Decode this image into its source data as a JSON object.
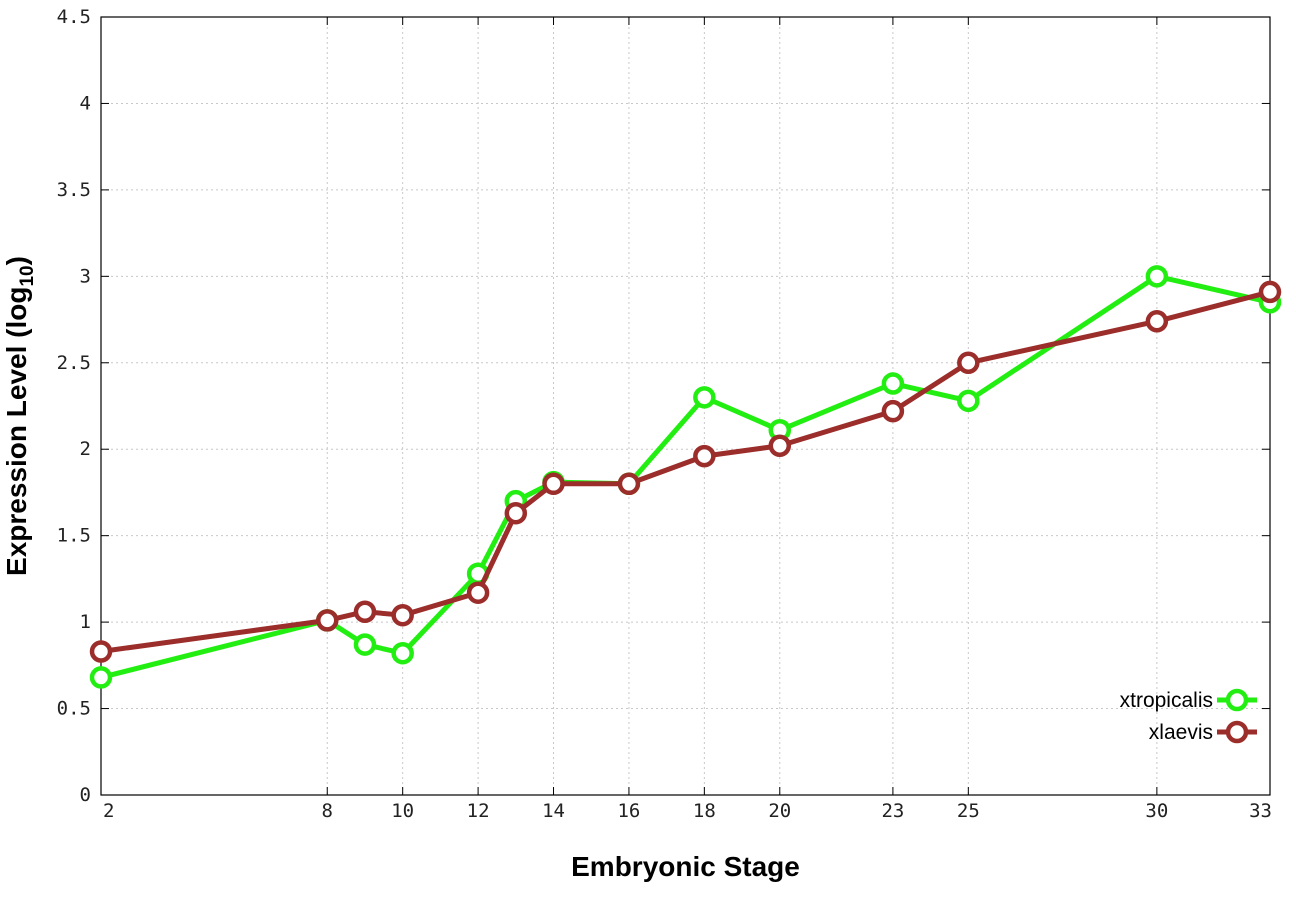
{
  "chart_data": {
    "type": "line",
    "xlabel": "Embryonic Stage",
    "ylabel_main": "Expression Level (log",
    "ylabel_sub": "10",
    "ylabel_close": ")",
    "xlim": [
      2,
      33
    ],
    "ylim": [
      0,
      4.5
    ],
    "x_ticks": [
      2,
      8,
      10,
      12,
      14,
      16,
      18,
      20,
      23,
      25,
      30,
      33
    ],
    "x_tick_labels": [
      "2",
      "8",
      "10",
      "12",
      "14",
      "16",
      "18",
      "20",
      "23",
      "25",
      "30",
      "33"
    ],
    "y_ticks": [
      0,
      0.5,
      1,
      1.5,
      2,
      2.5,
      3,
      3.5,
      4,
      4.5
    ],
    "y_tick_labels": [
      "0",
      "0.5",
      "1",
      "1.5",
      "2",
      "2.5",
      "3",
      "3.5",
      "4",
      "4.5"
    ],
    "grid": true,
    "legend_position": "bottom-right",
    "series": [
      {
        "name": "xtropicalis",
        "color": "#22ee11",
        "x": [
          2,
          8,
          9,
          10,
          12,
          13,
          14,
          16,
          18,
          20,
          23,
          25,
          30,
          33
        ],
        "y": [
          0.68,
          1.01,
          0.87,
          0.82,
          1.28,
          1.7,
          1.81,
          1.8,
          2.3,
          2.11,
          2.38,
          2.28,
          3.0,
          2.85
        ]
      },
      {
        "name": "xlaevis",
        "color": "#9b2d2a",
        "x": [
          2,
          8,
          9,
          10,
          12,
          13,
          14,
          16,
          18,
          20,
          23,
          25,
          30,
          33
        ],
        "y": [
          0.83,
          1.01,
          1.06,
          1.04,
          1.17,
          1.63,
          1.8,
          1.8,
          1.96,
          2.02,
          2.22,
          2.5,
          2.74,
          2.91
        ]
      }
    ]
  }
}
